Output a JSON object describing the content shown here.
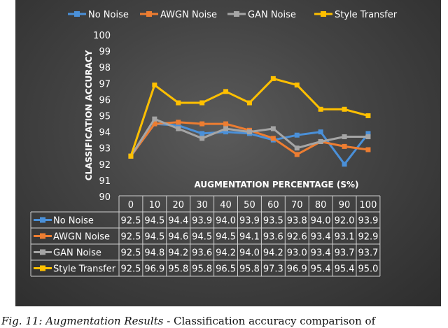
{
  "chart_data": {
    "type": "line",
    "x": [
      0,
      10,
      20,
      30,
      40,
      50,
      60,
      70,
      80,
      90,
      100
    ],
    "xlabel": "AUGMENTATION PERCENTAGE (S%)",
    "ylabel": "CLASSIFICATION ACCURACY",
    "ylim": [
      90,
      100
    ],
    "yticks": [
      90,
      91,
      92,
      93,
      94,
      95,
      96,
      97,
      98,
      99,
      100
    ],
    "legend_position": "top",
    "grid": false,
    "data_table": true,
    "series": [
      {
        "name": "No Noise",
        "color": "#4a90d9",
        "values": [
          "92.5",
          "94.5",
          "94.4",
          "93.9",
          "94.0",
          "93.9",
          "93.5",
          "93.8",
          "94.0",
          "92.0",
          "93.9"
        ]
      },
      {
        "name": "AWGN Noise",
        "color": "#ed7d31",
        "values": [
          "92.5",
          "94.5",
          "94.6",
          "94.5",
          "94.5",
          "94.1",
          "93.6",
          "92.6",
          "93.4",
          "93.1",
          "92.9"
        ]
      },
      {
        "name": "GAN Noise",
        "color": "#a5a5a5",
        "values": [
          "92.5",
          "94.8",
          "94.2",
          "93.6",
          "94.2",
          "94.0",
          "94.2",
          "93.0",
          "93.4",
          "93.7",
          "93.7"
        ]
      },
      {
        "name": "Style Transfer",
        "color": "#ffc000",
        "values": [
          "92.5",
          "96.9",
          "95.8",
          "95.8",
          "96.5",
          "95.8",
          "97.3",
          "96.9",
          "95.4",
          "95.4",
          "95.0"
        ]
      }
    ]
  },
  "caption": {
    "label": "Fig. 11: Augmentation Results",
    "text": " - Classification accuracy comparison of"
  }
}
